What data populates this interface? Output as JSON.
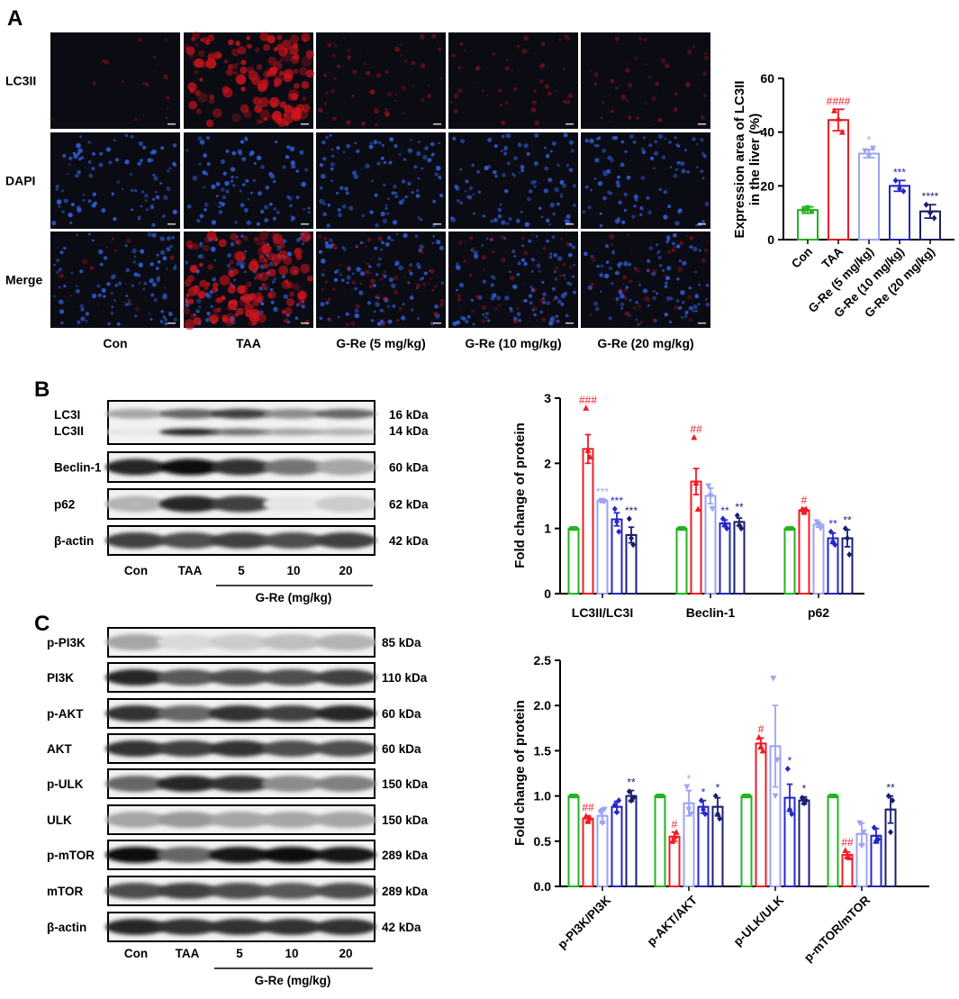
{
  "panel_labels": [
    "A",
    "B",
    "C"
  ],
  "panel_a": {
    "row_labels": [
      "LC3II",
      "DAPI",
      "Merge"
    ],
    "column_labels": [
      "Con",
      "TAA",
      "G-Re (5 mg/kg)",
      "G-Re (10 mg/kg)",
      "G-Re (20 mg/kg)"
    ],
    "lc3_intensity": [
      0.05,
      0.95,
      0.35,
      0.3,
      0.25
    ],
    "colors": {
      "red_channel": "#d4141c",
      "blue_channel": "#2f5fd6",
      "background": "#0b0b14"
    }
  },
  "panel_b_blot": {
    "rows": [
      {
        "label": "LC3I\nLC3II",
        "label_lines": [
          "LC3I",
          "LC3II"
        ],
        "kda_lines": [
          "16 kDa",
          "14 kDa"
        ],
        "band_darkness": [
          0.35,
          0.6,
          0.75,
          0.45,
          0.6
        ],
        "second_band_darkness": [
          0.1,
          0.85,
          0.55,
          0.35,
          0.3
        ]
      },
      {
        "label_lines": [
          "Beclin-1"
        ],
        "kda_lines": [
          "60 kDa"
        ],
        "band_darkness": [
          0.85,
          0.95,
          0.8,
          0.55,
          0.35
        ]
      },
      {
        "label_lines": [
          "p62"
        ],
        "kda_lines": [
          "62 kDa"
        ],
        "band_darkness": [
          0.3,
          0.85,
          0.75,
          0.1,
          0.2
        ]
      },
      {
        "label_lines": [
          "β-actin"
        ],
        "kda_lines": [
          "42 kDa"
        ],
        "band_darkness": [
          0.75,
          0.7,
          0.75,
          0.7,
          0.75
        ]
      }
    ],
    "lanes": [
      "Con",
      "TAA",
      "5",
      "10",
      "20"
    ],
    "group_label": "G-Re (mg/kg)"
  },
  "panel_c_blot": {
    "rows": [
      {
        "label_lines": [
          "p-PI3K"
        ],
        "kda_lines": [
          "85 kDa"
        ],
        "band_darkness": [
          0.35,
          0.15,
          0.2,
          0.25,
          0.3
        ]
      },
      {
        "label_lines": [
          "PI3K"
        ],
        "kda_lines": [
          "110 kDa"
        ],
        "band_darkness": [
          0.85,
          0.65,
          0.7,
          0.7,
          0.75
        ]
      },
      {
        "label_lines": [
          "p-AKT"
        ],
        "kda_lines": [
          "60 kDa"
        ],
        "band_darkness": [
          0.8,
          0.6,
          0.8,
          0.75,
          0.85
        ]
      },
      {
        "label_lines": [
          "AKT"
        ],
        "kda_lines": [
          "60 kDa"
        ],
        "band_darkness": [
          0.8,
          0.75,
          0.8,
          0.7,
          0.7
        ]
      },
      {
        "label_lines": [
          "p-ULK"
        ],
        "kda_lines": [
          "150 kDa"
        ],
        "band_darkness": [
          0.6,
          0.85,
          0.8,
          0.45,
          0.5
        ]
      },
      {
        "label_lines": [
          "ULK"
        ],
        "kda_lines": [
          "150 kDa"
        ],
        "band_darkness": [
          0.35,
          0.4,
          0.35,
          0.35,
          0.35
        ]
      },
      {
        "label_lines": [
          "p-mTOR"
        ],
        "kda_lines": [
          "289 kDa"
        ],
        "band_darkness": [
          0.95,
          0.6,
          0.9,
          0.95,
          0.9
        ]
      },
      {
        "label_lines": [
          "mTOR"
        ],
        "kda_lines": [
          "289 kDa"
        ],
        "band_darkness": [
          0.7,
          0.75,
          0.7,
          0.65,
          0.7
        ]
      },
      {
        "label_lines": [
          "β-actin"
        ],
        "kda_lines": [
          "42 kDa"
        ],
        "band_darkness": [
          0.85,
          0.8,
          0.8,
          0.8,
          0.8
        ]
      }
    ],
    "lanes": [
      "Con",
      "TAA",
      "5",
      "10",
      "20"
    ],
    "group_label": "G-Re (mg/kg)"
  },
  "series_colors": [
    "#21b421",
    "#ee1c25",
    "#9da4f2",
    "#2526c9",
    "#1a1f6e"
  ],
  "chart_data": [
    {
      "type": "bar",
      "ylabel_lines": [
        "Expression area of LC3II",
        "in the liver (%)"
      ],
      "categories": [
        "Con",
        "TAA",
        "G-Re (5 mg/kg)",
        "G-Re (10 mg/kg)",
        "G-Re (20 mg/kg)"
      ],
      "values": [
        11,
        44.5,
        32,
        20,
        10.5
      ],
      "errors": [
        1.2,
        4,
        1.5,
        2,
        2.5
      ],
      "points": [
        [
          11,
          12,
          10.5
        ],
        [
          48,
          45,
          40
        ],
        [
          33,
          31,
          34
        ],
        [
          22,
          19,
          18
        ],
        [
          13,
          10,
          8
        ]
      ],
      "significance": [
        "",
        "####",
        "*",
        "***",
        "****"
      ],
      "ylim": [
        0,
        60
      ],
      "yticks": [
        0,
        20,
        40,
        60
      ]
    },
    {
      "type": "bar",
      "ylabel": "Fold change of protein",
      "groups": [
        "LC3II/LC3I",
        "Beclin-1",
        "p62"
      ],
      "series": [
        {
          "values": [
            1,
            1,
            1
          ],
          "errors": [
            0,
            0,
            0
          ],
          "points": [
            [
              1,
              1,
              1
            ],
            [
              1,
              1,
              1
            ],
            [
              1,
              1,
              1
            ]
          ]
        },
        {
          "values": [
            2.22,
            1.72,
            1.28
          ],
          "errors": [
            0.22,
            0.2,
            0.03
          ],
          "points": [
            [
              2.85,
              2.2,
              2.1
            ],
            [
              2.4,
              1.7,
              1.3
            ],
            [
              1.3,
              1.25,
              1.3
            ]
          ]
        },
        {
          "values": [
            1.42,
            1.5,
            1.06
          ],
          "errors": [
            0.02,
            0.12,
            0.04
          ],
          "points": [
            [
              1.42,
              1.43,
              1.41
            ],
            [
              1.65,
              1.5,
              1.3
            ],
            [
              1.1,
              1.05,
              1.0
            ]
          ]
        },
        {
          "values": [
            1.14,
            1.08,
            0.85
          ],
          "errors": [
            0.1,
            0.05,
            0.08
          ],
          "points": [
            [
              1.3,
              1.1,
              0.95
            ],
            [
              1.15,
              1.05,
              1.0
            ],
            [
              0.95,
              0.8,
              0.75
            ]
          ]
        },
        {
          "values": [
            0.9,
            1.1,
            0.85
          ],
          "errors": [
            0.12,
            0.06,
            0.13
          ],
          "points": [
            [
              1.15,
              0.85,
              0.75
            ],
            [
              1.2,
              1.05,
              1.0
            ],
            [
              1.0,
              0.85,
              0.6
            ]
          ]
        }
      ],
      "significance": [
        [
          "",
          "###",
          "***",
          "***",
          "***"
        ],
        [
          "",
          "##",
          "",
          "**",
          "**"
        ],
        [
          "",
          "#",
          "",
          "**",
          "**"
        ]
      ],
      "ylim": [
        0,
        3
      ],
      "yticks": [
        0,
        1,
        2,
        3
      ]
    },
    {
      "type": "bar",
      "ylabel": "Fold change of protein",
      "groups": [
        "p-PI3K/PI3K",
        "p-AKT/AKT",
        "p-ULK/ULK",
        "p-mTOR/mTOR"
      ],
      "series": [
        {
          "values": [
            1,
            1,
            1,
            1
          ],
          "errors": [
            0,
            0,
            0,
            0
          ],
          "points": [
            [
              1,
              1,
              1
            ],
            [
              1,
              1,
              1
            ],
            [
              1,
              1,
              1
            ],
            [
              1,
              1,
              1
            ]
          ]
        },
        {
          "values": [
            0.75,
            0.55,
            1.58,
            0.35
          ],
          "errors": [
            0.03,
            0.05,
            0.06,
            0.03
          ],
          "points": [
            [
              0.78,
              0.72,
              0.76
            ],
            [
              0.5,
              0.55,
              0.6
            ],
            [
              1.65,
              1.55,
              1.5
            ],
            [
              0.4,
              0.33,
              0.32
            ]
          ]
        },
        {
          "values": [
            0.78,
            0.92,
            1.55,
            0.58
          ],
          "errors": [
            0.08,
            0.14,
            0.45,
            0.12
          ],
          "points": [
            [
              0.82,
              0.7,
              0.85
            ],
            [
              1.1,
              0.85,
              0.8
            ],
            [
              2.3,
              1.0,
              1.4
            ],
            [
              0.7,
              0.45,
              0.6
            ]
          ]
        },
        {
          "values": [
            0.88,
            0.88,
            0.98,
            0.56
          ],
          "errors": [
            0.06,
            0.07,
            0.15,
            0.08
          ],
          "points": [
            [
              0.9,
              0.82,
              0.95
            ],
            [
              0.95,
              0.85,
              0.8
            ],
            [
              1.3,
              0.85,
              0.8
            ],
            [
              0.65,
              0.5,
              0.52
            ]
          ]
        },
        {
          "values": [
            1.0,
            0.88,
            0.95,
            0.85
          ],
          "errors": [
            0.06,
            0.1,
            0.04,
            0.15
          ],
          "points": [
            [
              1.05,
              0.95,
              0.98
            ],
            [
              1.0,
              0.8,
              0.75
            ],
            [
              0.98,
              0.92,
              0.95
            ],
            [
              1.0,
              0.6,
              0.95
            ]
          ]
        }
      ],
      "significance": [
        [
          "",
          "##",
          "",
          "",
          "**"
        ],
        [
          "",
          "#",
          "*",
          "*",
          "*"
        ],
        [
          "",
          "#",
          "",
          "*",
          "*"
        ],
        [
          "",
          "##",
          "",
          "",
          "**"
        ]
      ],
      "ylim": [
        0,
        2.5
      ],
      "yticks": [
        0.0,
        0.5,
        1.0,
        1.5,
        2.0,
        2.5
      ]
    }
  ]
}
